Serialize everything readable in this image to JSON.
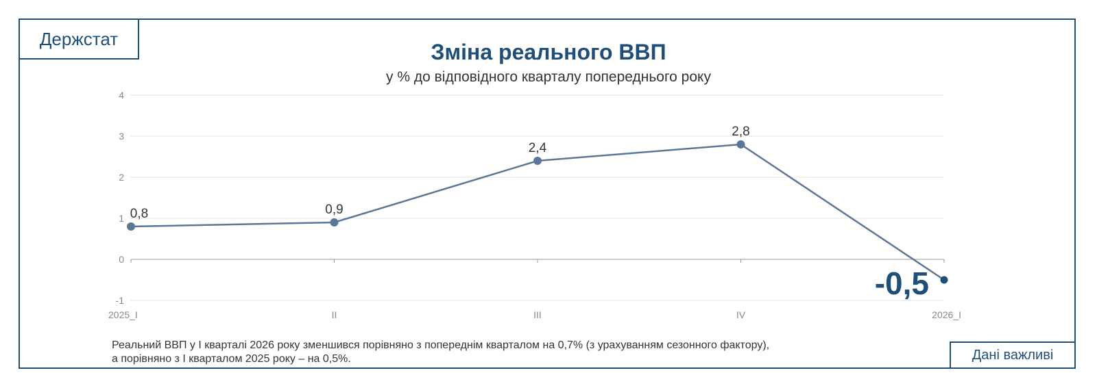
{
  "brand": {
    "logo_text": "Держстат"
  },
  "header": {
    "title": "Зміна реального ВВП",
    "subtitle": "у % до відповідного кварталу попереднього року"
  },
  "note": {
    "line1": "Реальний ВВП у І кварталі 2026 року зменшився порівняно з попереднім кварталом на 0,7% (з урахуванням сезонного фактору),",
    "line2": "а порівняно з І кварталом 2025 року – на 0,5%."
  },
  "button": {
    "label": "Дані важливі"
  },
  "colors": {
    "accent": "#1f4e79",
    "line": "#5a7896",
    "grid": "#cccccc"
  },
  "chart_data": {
    "type": "line",
    "categories": [
      "2025_I",
      "II",
      "III",
      "IV",
      "2026_I"
    ],
    "series": [
      {
        "values": [
          0.8,
          0.9,
          2.4,
          2.8,
          -0.5
        ]
      }
    ],
    "data_labels": [
      "0,8",
      "0,9",
      "2,4",
      "2,8",
      "-0,5"
    ],
    "y_ticks": [
      4,
      3,
      2,
      1,
      0,
      -1
    ],
    "y_tick_labels": [
      "4",
      "3",
      "2",
      "1",
      "0",
      "-1"
    ],
    "ylim": [
      -1,
      4
    ],
    "grid": true,
    "legend": "none",
    "highlight_last": true
  }
}
